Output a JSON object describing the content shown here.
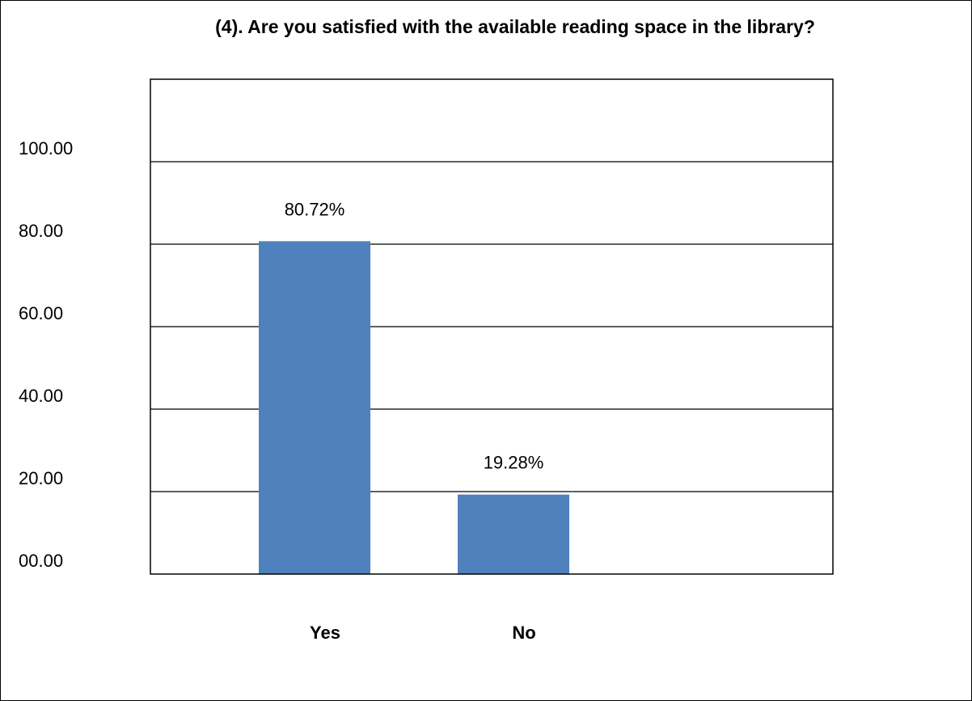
{
  "chart_data": {
    "type": "bar",
    "title": "(4). Are you satisfied with the available reading space in the library?",
    "xlabel": "",
    "ylabel": "",
    "categories": [
      "Yes",
      "No"
    ],
    "values": [
      80.72,
      19.28
    ],
    "data_labels": [
      "80.72%",
      "19.28%"
    ],
    "ylim": [
      0,
      120
    ],
    "yticks": [
      0,
      20,
      40,
      60,
      80,
      100
    ],
    "ytick_labels": [
      "00.00",
      "20.00",
      "40.00",
      "60.00",
      "80.00",
      "100.00"
    ],
    "grid": true,
    "legend": "none",
    "bar_color": "#4f81bd"
  }
}
